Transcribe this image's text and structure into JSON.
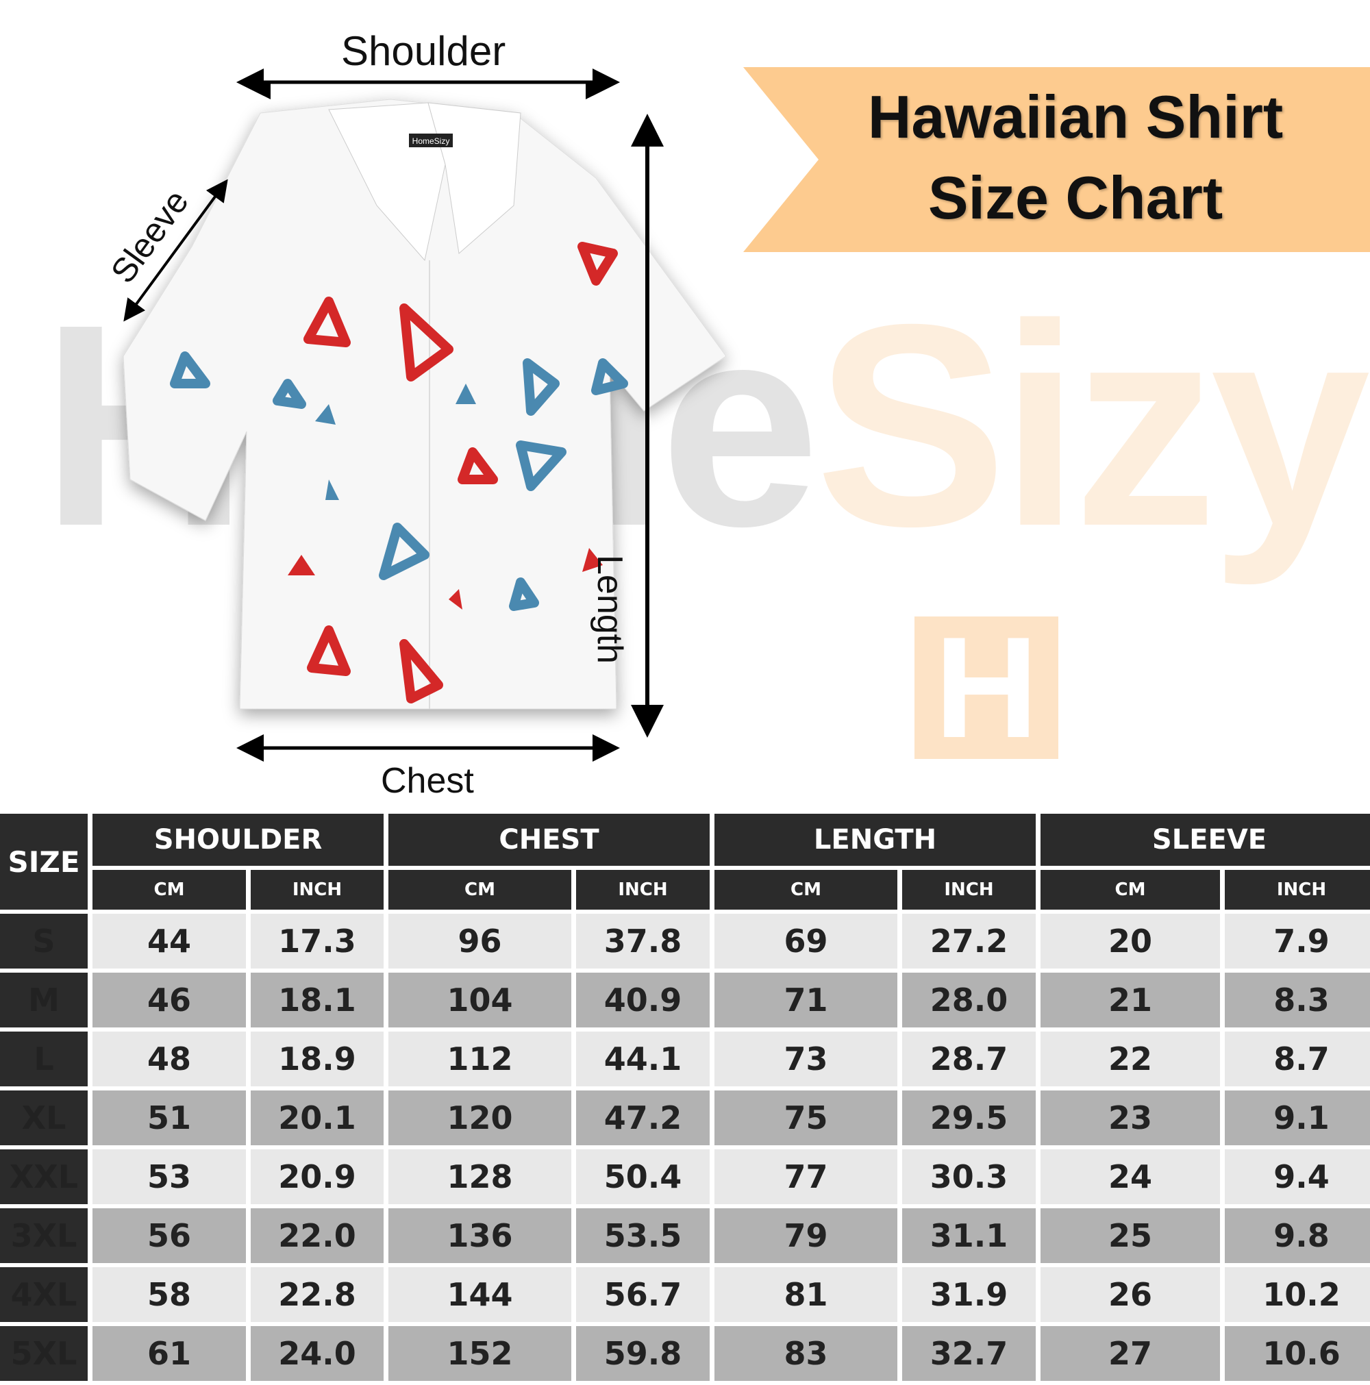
{
  "watermark": {
    "left": "Home",
    "right": "Sizy",
    "logo": "H"
  },
  "banner": {
    "line1": "Hawaiian Shirt",
    "line2": "Size Chart",
    "color": "#fdcb8f"
  },
  "diagram": {
    "shoulder": "Shoulder",
    "sleeve": "Sleeve",
    "length": "Length",
    "chest": "Chest",
    "tag": "HomeSizy"
  },
  "table": {
    "size_header": "SIZE",
    "groups": [
      "SHOULDER",
      "CHEST",
      "LENGTH",
      "SLEEVE"
    ],
    "units": [
      "CM",
      "INCH",
      "CM",
      "INCH",
      "CM",
      "INCH",
      "CM",
      "INCH"
    ],
    "rows": [
      {
        "size": "S",
        "values": [
          "44",
          "17.3",
          "96",
          "37.8",
          "69",
          "27.2",
          "20",
          "7.9"
        ]
      },
      {
        "size": "M",
        "values": [
          "46",
          "18.1",
          "104",
          "40.9",
          "71",
          "28.0",
          "21",
          "8.3"
        ]
      },
      {
        "size": "L",
        "values": [
          "48",
          "18.9",
          "112",
          "44.1",
          "73",
          "28.7",
          "22",
          "8.7"
        ]
      },
      {
        "size": "XL",
        "values": [
          "51",
          "20.1",
          "120",
          "47.2",
          "75",
          "29.5",
          "23",
          "9.1"
        ]
      },
      {
        "size": "XXL",
        "values": [
          "53",
          "20.9",
          "128",
          "50.4",
          "77",
          "30.3",
          "24",
          "9.4"
        ]
      },
      {
        "size": "3XL",
        "values": [
          "56",
          "22.0",
          "136",
          "53.5",
          "79",
          "31.1",
          "25",
          "9.8"
        ]
      },
      {
        "size": "4XL",
        "values": [
          "58",
          "22.8",
          "144",
          "56.7",
          "81",
          "31.9",
          "26",
          "10.2"
        ]
      },
      {
        "size": "5XL",
        "values": [
          "61",
          "24.0",
          "152",
          "59.8",
          "83",
          "32.7",
          "27",
          "10.6"
        ]
      }
    ]
  }
}
